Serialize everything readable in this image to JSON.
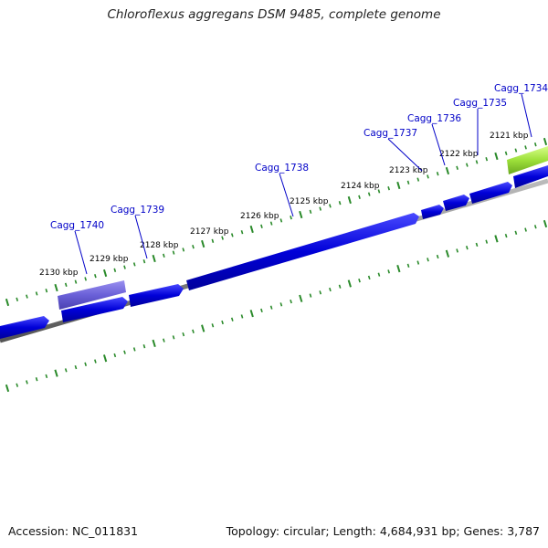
{
  "title": "Chloroflexus aggregans DSM 9485, complete genome",
  "footer": {
    "accession": "Accession: NC_011831",
    "summary": "Topology: circular; Length: 4,684,931 bp; Genes: 3,787"
  },
  "colors": {
    "backbone": "#888888",
    "cds": "#0000d8",
    "cds_light": "#6a60d8",
    "highlight": "#9de03a",
    "tick": "#2a8a2a",
    "label": "#0000c8"
  },
  "scale_labels": [
    "2121 kbp",
    "2122 kbp",
    "2123 kbp",
    "2124 kbp",
    "2125 kbp",
    "2126 kbp",
    "2127 kbp",
    "2128 kbp",
    "2129 kbp",
    "2130 kbp"
  ],
  "gene_labels": [
    "Cagg_1734",
    "Cagg_1735",
    "Cagg_1736",
    "Cagg_1737",
    "Cagg_1738",
    "Cagg_1739",
    "Cagg_1740"
  ]
}
